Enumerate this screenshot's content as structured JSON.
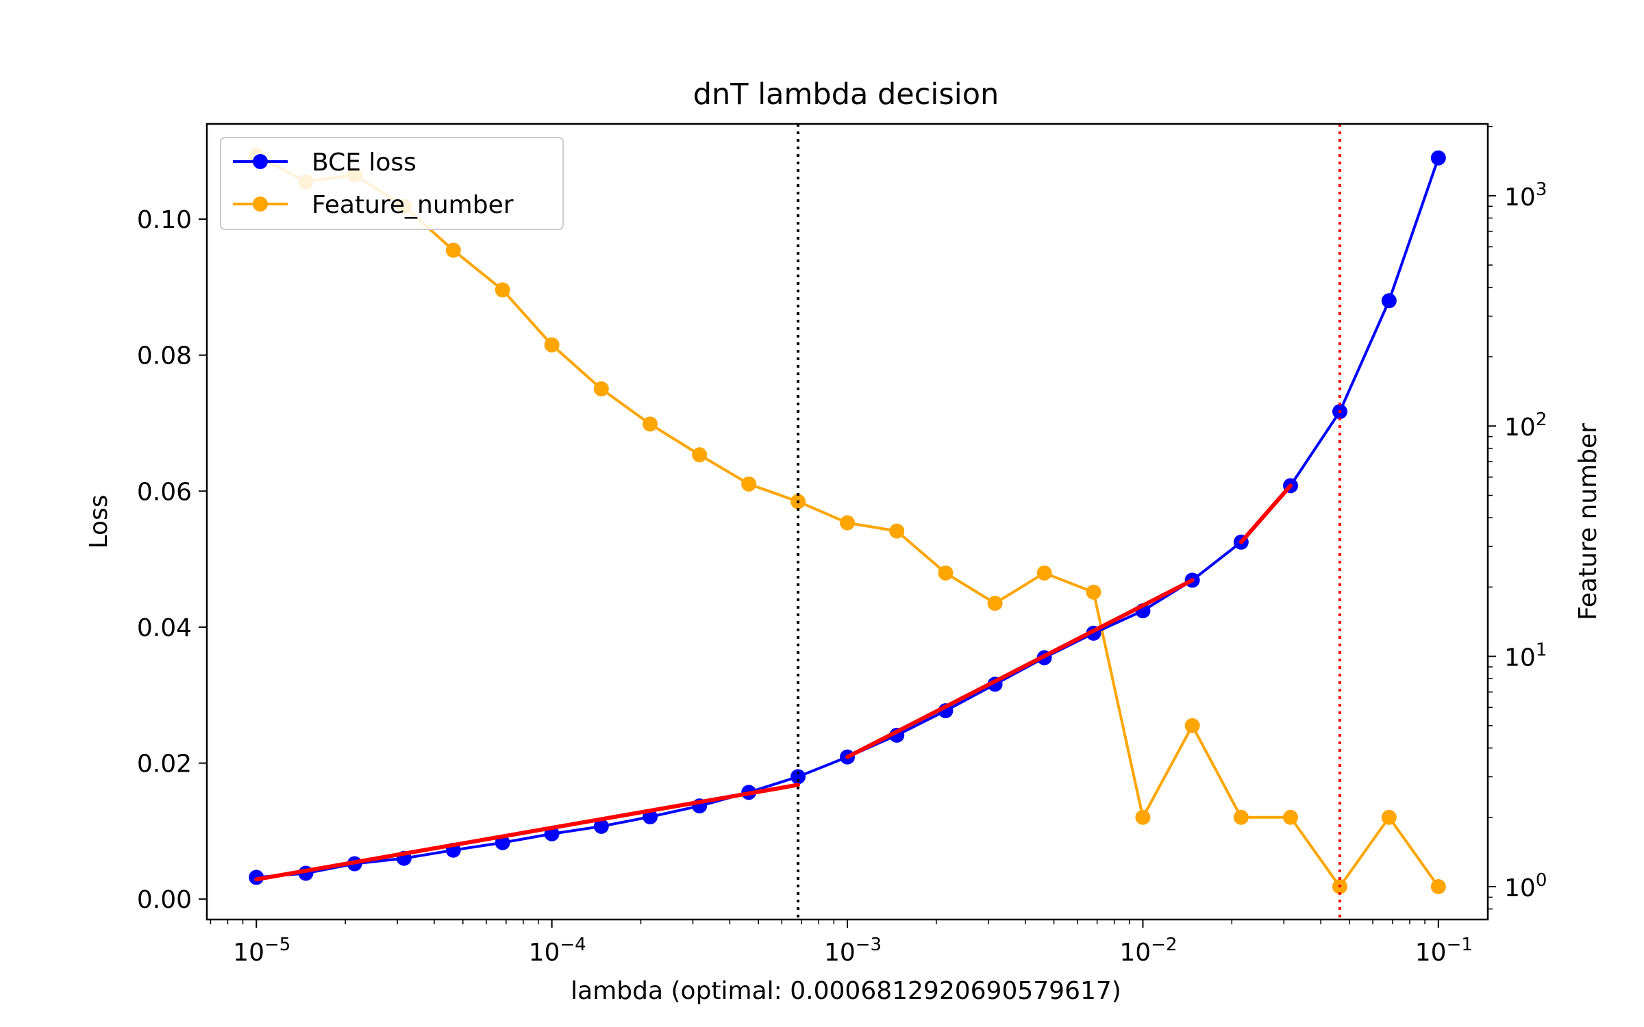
{
  "chart_data": {
    "type": "line",
    "title": "dnT lambda decision",
    "xlabel": "lambda (optimal: 0.0006812920690579617)",
    "ylabel": "Loss",
    "y2label": "Feature number",
    "xscale": "log",
    "xlim": [
      6.8e-06,
      0.147
    ],
    "ylim": [
      -0.003,
      0.114
    ],
    "y2scale": "log",
    "y2lim": [
      0.72,
      2050
    ],
    "x_ticks": [
      {
        "base": "10",
        "exp": "−5",
        "value": 1e-05
      },
      {
        "base": "10",
        "exp": "−4",
        "value": 0.0001
      },
      {
        "base": "10",
        "exp": "−3",
        "value": 0.001
      },
      {
        "base": "10",
        "exp": "−2",
        "value": 0.01
      },
      {
        "base": "10",
        "exp": "−1",
        "value": 0.1
      }
    ],
    "y_ticks": [
      "0.00",
      "0.02",
      "0.04",
      "0.06",
      "0.08",
      "0.10"
    ],
    "y2_ticks": [
      {
        "base": "10",
        "exp": "0",
        "value": 1
      },
      {
        "base": "10",
        "exp": "1",
        "value": 10
      },
      {
        "base": "10",
        "exp": "2",
        "value": 100
      },
      {
        "base": "10",
        "exp": "3",
        "value": 1000
      }
    ],
    "x": [
      1e-05,
      1.47e-05,
      2.15e-05,
      3.16e-05,
      4.64e-05,
      6.81e-05,
      0.0001,
      0.000147,
      0.000215,
      0.000316,
      0.000464,
      0.000681,
      0.001,
      0.00147,
      0.00215,
      0.00316,
      0.00464,
      0.00681,
      0.01,
      0.0147,
      0.0215,
      0.0316,
      0.0464,
      0.0681,
      0.1
    ],
    "series": [
      {
        "name": "BCE loss",
        "axis": "left",
        "color": "#0000ff",
        "values": [
          0.0032,
          0.0038,
          0.0052,
          0.006,
          0.0072,
          0.0083,
          0.0096,
          0.0107,
          0.0121,
          0.0137,
          0.0157,
          0.018,
          0.0209,
          0.0241,
          0.0277,
          0.0316,
          0.0355,
          0.0391,
          0.0424,
          0.0469,
          0.0525,
          0.0608,
          0.0717,
          0.088,
          0.109
        ]
      },
      {
        "name": "Feature_number",
        "axis": "right",
        "color": "#ffa500",
        "values": [
          1500,
          1150,
          1230,
          900,
          580,
          390,
          225,
          145,
          102,
          75,
          56,
          47,
          38,
          35,
          23,
          17,
          23,
          19,
          2,
          5,
          2,
          2,
          1,
          2,
          1
        ]
      }
    ],
    "fit_segments": [
      {
        "color": "#ff0000",
        "x": [
          1e-05,
          0.000681
        ],
        "y": [
          0.0029,
          0.0168
        ]
      },
      {
        "color": "#ff0000",
        "x": [
          0.001,
          0.0147
        ],
        "y": [
          0.0209,
          0.0469
        ]
      },
      {
        "color": "#ff0000",
        "x": [
          0.0215,
          0.0316
        ],
        "y": [
          0.0525,
          0.0608
        ]
      }
    ],
    "vlines": [
      {
        "x": 0.000681,
        "color": "#000000",
        "style": "dotted"
      },
      {
        "x": 0.0464,
        "color": "#ff0000",
        "style": "dotted"
      }
    ],
    "legend": {
      "location": "upper-left"
    },
    "grid": false
  }
}
